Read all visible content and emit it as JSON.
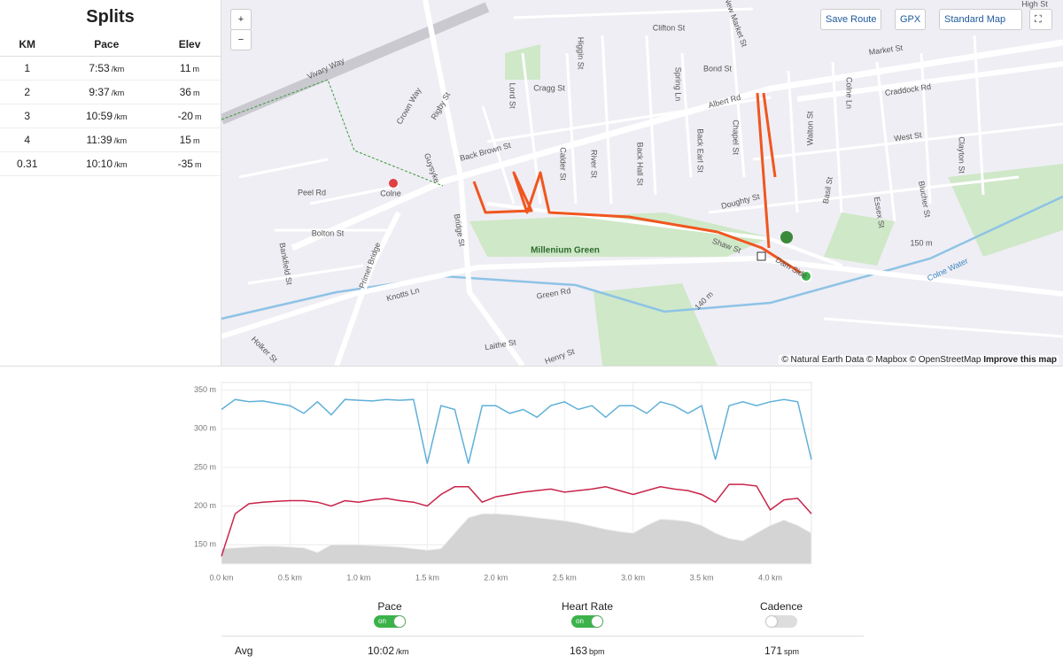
{
  "splits": {
    "title": "Splits",
    "headers": [
      "KM",
      "Pace",
      "Elev"
    ],
    "rows": [
      {
        "km": 1,
        "pace": "7:53",
        "pace_unit": "/km",
        "elev": 11,
        "elev_unit": "m"
      },
      {
        "km": 2,
        "pace": "9:37",
        "pace_unit": "/km",
        "elev": 36,
        "elev_unit": "m"
      },
      {
        "km": 3,
        "pace": "10:59",
        "pace_unit": "/km",
        "elev": -20,
        "elev_unit": "m"
      },
      {
        "km": 4,
        "pace": "11:39",
        "pace_unit": "/km",
        "elev": 15,
        "elev_unit": "m"
      },
      {
        "km": 0.31,
        "pace": "10:10",
        "pace_unit": "/km",
        "elev": -35,
        "elev_unit": "m"
      }
    ]
  },
  "map": {
    "zoom_in": "+",
    "zoom_out": "−",
    "save_route": "Save Route",
    "gpx": "GPX",
    "map_style": "Standard Map",
    "attribution": "© Natural Earth Data © Mapbox © OpenStreetMap",
    "improve": "Improve this map",
    "labels": [
      "Vivary Way",
      "Crown Way",
      "Rigby St",
      "Lord St",
      "Cragg St",
      "Higgin St",
      "Clifton St",
      "Spring Ln",
      "Bond St",
      "New Market St",
      "Market St",
      "Craddock Rd",
      "Albert Rd",
      "Colne Ln",
      "Walton St",
      "West St",
      "Clayton St",
      "Chapel St",
      "Back Earl St",
      "Back Hall St",
      "River St",
      "Calder St",
      "Back Brown St",
      "Guysyke",
      "Peel Rd",
      "Colne",
      "Bolton St",
      "Bankfield St",
      "Primet Bridge",
      "Bridge St",
      "Knotts Ln",
      "Millenium Green",
      "Green Rd",
      "Laithe St",
      "Henry St",
      "Holker St",
      "Doughty St",
      "Basil St",
      "Essex St",
      "Blucher St",
      "Shaw St",
      "Dam Side",
      "Colne Water",
      "150 m",
      "140 m",
      "High St"
    ]
  },
  "chart_data": {
    "type": "line",
    "x": [
      0,
      0.1,
      0.2,
      0.3,
      0.4,
      0.5,
      0.6,
      0.7,
      0.8,
      0.9,
      1.0,
      1.1,
      1.2,
      1.3,
      1.4,
      1.5,
      1.6,
      1.7,
      1.8,
      1.9,
      2.0,
      2.1,
      2.2,
      2.3,
      2.4,
      2.5,
      2.6,
      2.7,
      2.8,
      2.9,
      3.0,
      3.1,
      3.2,
      3.3,
      3.4,
      3.5,
      3.6,
      3.7,
      3.8,
      3.9,
      4.0,
      4.1,
      4.2,
      4.3
    ],
    "series": [
      {
        "color": "#f0f0f0",
        "fill": "#d4d4d4",
        "area": true,
        "values": [
          145,
          146,
          147,
          148,
          148,
          147,
          146,
          140,
          150,
          150,
          150,
          149,
          148,
          147,
          145,
          143,
          145,
          165,
          185,
          190,
          190,
          189,
          187,
          185,
          183,
          181,
          178,
          174,
          170,
          167,
          165,
          175,
          183,
          182,
          180,
          175,
          165,
          158,
          155,
          165,
          175,
          182,
          175,
          165
        ]
      },
      {
        "color": "#5fb0d8",
        "values": [
          325,
          338,
          335,
          336,
          333,
          330,
          320,
          335,
          318,
          338,
          337,
          336,
          338,
          337,
          338,
          255,
          330,
          325,
          255,
          330,
          330,
          320,
          325,
          315,
          330,
          335,
          325,
          330,
          315,
          330,
          330,
          320,
          335,
          330,
          320,
          330,
          260,
          330,
          335,
          330,
          335,
          338,
          335,
          260
        ]
      },
      {
        "color": "#c8234a",
        "values": [
          135,
          190,
          203,
          205,
          206,
          207,
          207,
          205,
          200,
          207,
          205,
          208,
          210,
          207,
          205,
          200,
          215,
          225,
          225,
          205,
          212,
          215,
          218,
          220,
          222,
          218,
          220,
          222,
          225,
          220,
          215,
          220,
          225,
          222,
          220,
          215,
          205,
          228,
          228,
          226,
          195,
          208,
          210,
          190
        ]
      }
    ],
    "xlim": [
      0,
      4.3
    ],
    "ylim": [
      125,
      360
    ],
    "xticks": [
      {
        "value": 0,
        "label": "0.0 km"
      },
      {
        "value": 0.5,
        "label": "0.5 km"
      },
      {
        "value": 1,
        "label": "1.0 km"
      },
      {
        "value": 1.5,
        "label": "1.5 km"
      },
      {
        "value": 2,
        "label": "2.0 km"
      },
      {
        "value": 2.5,
        "label": "2.5 km"
      },
      {
        "value": 3,
        "label": "3.0 km"
      },
      {
        "value": 3.5,
        "label": "3.5 km"
      },
      {
        "value": 4,
        "label": "4.0 km"
      }
    ],
    "yticks": [
      {
        "value": 150,
        "label": "150 m"
      },
      {
        "value": 200,
        "label": "200 m"
      },
      {
        "value": 250,
        "label": "250 m"
      },
      {
        "value": 300,
        "label": "300 m"
      },
      {
        "value": 350,
        "label": "350 m"
      }
    ],
    "grid": true
  },
  "toggles": [
    {
      "label": "Pace",
      "state": "on"
    },
    {
      "label": "Heart Rate",
      "state": "on"
    },
    {
      "label": "Cadence"
    }
  ],
  "averages": {
    "label": "Avg",
    "pace": "10:02",
    "pace_unit": "/km",
    "heart_rate": 163,
    "heart_rate_unit": "bpm",
    "cadence": 171,
    "cadence_unit": "spm"
  }
}
